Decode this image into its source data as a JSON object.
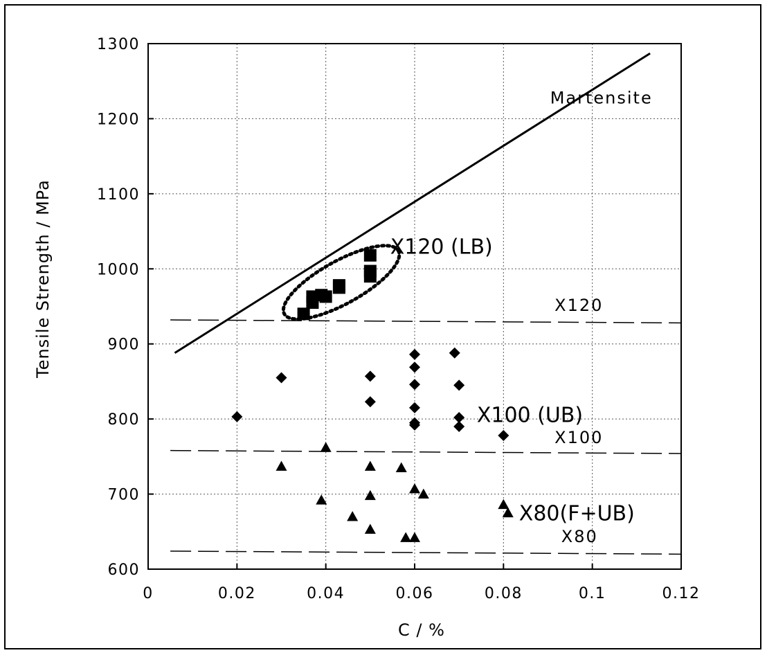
{
  "chart_data": {
    "type": "scatter",
    "title": "",
    "xlabel": "C / %",
    "ylabel": "Tensile Strength / MPa",
    "xlim": [
      0,
      0.12
    ],
    "ylim": [
      600,
      1300
    ],
    "xticks": [
      0,
      0.02,
      0.04,
      0.06,
      0.08,
      0.1,
      0.12
    ],
    "xtick_labels": [
      "0",
      "0.02",
      "0.04",
      "0.06",
      "0.08",
      "0.1",
      "0.12"
    ],
    "yticks": [
      600,
      700,
      800,
      900,
      1000,
      1100,
      1200,
      1300
    ],
    "ytick_labels": [
      "600",
      "700",
      "800",
      "900",
      "1000",
      "1100",
      "1200",
      "1300"
    ],
    "grid": true,
    "series": [
      {
        "name": "X120 (LB)",
        "marker": "square",
        "color": "#000000",
        "points": [
          {
            "x": 0.035,
            "y": 940
          },
          {
            "x": 0.037,
            "y": 955
          },
          {
            "x": 0.037,
            "y": 963
          },
          {
            "x": 0.039,
            "y": 965
          },
          {
            "x": 0.04,
            "y": 963
          },
          {
            "x": 0.043,
            "y": 975
          },
          {
            "x": 0.043,
            "y": 978
          },
          {
            "x": 0.05,
            "y": 990
          },
          {
            "x": 0.05,
            "y": 997
          },
          {
            "x": 0.05,
            "y": 1018
          }
        ]
      },
      {
        "name": "X100 (UB)",
        "marker": "diamond",
        "color": "#000000",
        "points": [
          {
            "x": 0.02,
            "y": 803
          },
          {
            "x": 0.03,
            "y": 855
          },
          {
            "x": 0.05,
            "y": 857
          },
          {
            "x": 0.05,
            "y": 823
          },
          {
            "x": 0.06,
            "y": 886
          },
          {
            "x": 0.06,
            "y": 869
          },
          {
            "x": 0.06,
            "y": 846
          },
          {
            "x": 0.06,
            "y": 815
          },
          {
            "x": 0.06,
            "y": 795
          },
          {
            "x": 0.06,
            "y": 792
          },
          {
            "x": 0.069,
            "y": 888
          },
          {
            "x": 0.07,
            "y": 845
          },
          {
            "x": 0.07,
            "y": 802
          },
          {
            "x": 0.07,
            "y": 790
          },
          {
            "x": 0.08,
            "y": 778
          }
        ]
      },
      {
        "name": "X80(F+UB)",
        "marker": "triangle",
        "color": "#000000",
        "points": [
          {
            "x": 0.03,
            "y": 737
          },
          {
            "x": 0.04,
            "y": 762
          },
          {
            "x": 0.039,
            "y": 692
          },
          {
            "x": 0.046,
            "y": 670
          },
          {
            "x": 0.05,
            "y": 737
          },
          {
            "x": 0.05,
            "y": 698
          },
          {
            "x": 0.05,
            "y": 653
          },
          {
            "x": 0.057,
            "y": 735
          },
          {
            "x": 0.058,
            "y": 642
          },
          {
            "x": 0.06,
            "y": 642
          },
          {
            "x": 0.06,
            "y": 707
          },
          {
            "x": 0.062,
            "y": 700
          },
          {
            "x": 0.08,
            "y": 686
          },
          {
            "x": 0.081,
            "y": 675
          }
        ]
      }
    ],
    "lines": [
      {
        "name": "Martensite",
        "style": "solid",
        "x": [
          0.006,
          0.113
        ],
        "y": [
          888,
          1287
        ]
      },
      {
        "name": "X120",
        "style": "dashed",
        "x": [
          0.005,
          0.12
        ],
        "y": [
          932,
          928
        ]
      },
      {
        "name": "X100",
        "style": "dashed",
        "x": [
          0.005,
          0.12
        ],
        "y": [
          758,
          754
        ]
      },
      {
        "name": "X80",
        "style": "dashed",
        "x": [
          0.005,
          0.12
        ],
        "y": [
          624,
          620
        ]
      }
    ],
    "region": {
      "name": "X120 (LB)",
      "shape": "ellipse",
      "style": "dotted",
      "cx": 0.0435,
      "cy": 982,
      "rx": 0.01,
      "ry": 30,
      "rotation_deg": -29
    },
    "annotations": [
      {
        "text": "Martensite",
        "x": 0.0905,
        "y": 1220,
        "size": "small"
      },
      {
        "text": "X120 (LB)",
        "x": 0.0545,
        "y": 1020,
        "size": "large"
      },
      {
        "text": "X120",
        "x": 0.0915,
        "y": 944,
        "size": "small"
      },
      {
        "text": "X100 (UB)",
        "x": 0.074,
        "y": 796,
        "size": "large"
      },
      {
        "text": "X100",
        "x": 0.0915,
        "y": 768,
        "size": "small"
      },
      {
        "text": "X80(F+UB)",
        "x": 0.0835,
        "y": 665,
        "size": "large"
      },
      {
        "text": "X80",
        "x": 0.093,
        "y": 636,
        "size": "small"
      }
    ]
  }
}
